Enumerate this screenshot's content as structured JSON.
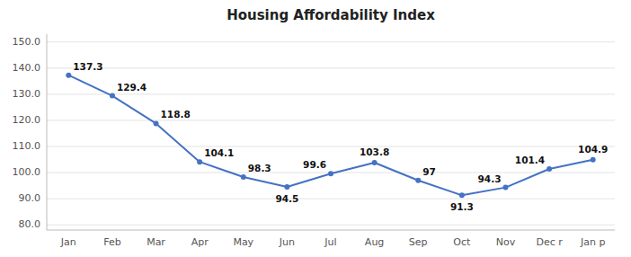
{
  "chart_data": {
    "type": "line",
    "title": "Housing Affordability Index",
    "categories": [
      "Jan",
      "Feb",
      "Mar",
      "Apr",
      "May",
      "Jun",
      "Jul",
      "Aug",
      "Sep",
      "Oct",
      "Nov",
      "Dec r",
      "Jan p"
    ],
    "values": [
      137.3,
      129.4,
      118.8,
      104.1,
      98.3,
      94.5,
      99.6,
      103.8,
      97.0,
      91.3,
      94.3,
      101.4,
      104.9
    ],
    "color": "#4472C4",
    "marker": "circle",
    "ylim": [
      78.0,
      153.0
    ],
    "yticks": [
      {
        "value": 80.0,
        "label": "80.0"
      },
      {
        "value": 90.0,
        "label": "90.0"
      },
      {
        "value": 100.0,
        "label": "100.0"
      },
      {
        "value": 110.0,
        "label": "110.0"
      },
      {
        "value": 120.0,
        "label": "120.0"
      },
      {
        "value": 130.0,
        "label": "130.0"
      },
      {
        "value": 140.0,
        "label": "140.0"
      },
      {
        "value": 150.0,
        "label": "150.0"
      }
    ],
    "grid": true,
    "data_labels": true
  }
}
